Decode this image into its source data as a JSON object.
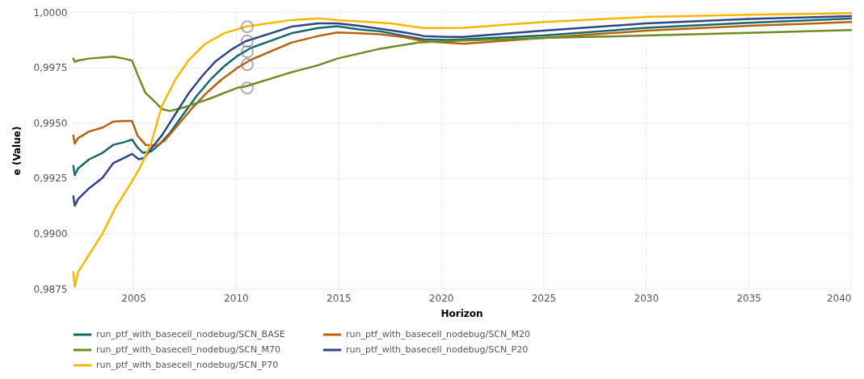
{
  "chart_data": {
    "type": "line",
    "xlabel": "Horizon",
    "ylabel": "e (Value)",
    "xlim": [
      2002,
      2040
    ],
    "xticks": [
      2005,
      2010,
      2015,
      2020,
      2025,
      2030,
      2035,
      2040
    ],
    "ylim": [
      0.9875,
      1
    ],
    "yticks": [
      {
        "value": 0.9875,
        "label": "0,9875"
      },
      {
        "value": 0.99,
        "label": "0,9900"
      },
      {
        "value": 0.9925,
        "label": "0,9925"
      },
      {
        "value": 0.995,
        "label": "0,9950"
      },
      {
        "value": 0.9975,
        "label": "0,9975"
      },
      {
        "value": 1,
        "label": "1,0000"
      }
    ],
    "grid": true,
    "legend": "bottom",
    "series": [
      {
        "name": "run_ptf_with_basecell_nodebug/SCN_BASE",
        "color": "#17696b",
        "x": [
          2002.07,
          2002.14,
          2002.3,
          2002.83,
          2003.49,
          2004.01,
          2004.54,
          2004.93,
          2005.2,
          2005.46,
          2005.86,
          2006.25,
          2006.78,
          2007.43,
          2008.09,
          2008.75,
          2009.41,
          2010.07,
          2010.72,
          2012.7,
          2014.01,
          2014.94,
          2015.99,
          2017.05,
          2018.23,
          2019.16,
          2020.2,
          2021.1,
          2025,
          2030,
          2035,
          2040
        ],
        "values": [
          0.99305,
          0.99263,
          0.99293,
          0.99334,
          0.99364,
          0.994,
          0.99412,
          0.99424,
          0.99388,
          0.99364,
          0.9937,
          0.994,
          0.99454,
          0.99538,
          0.99622,
          0.99694,
          0.99754,
          0.99802,
          0.99838,
          0.99904,
          0.99928,
          0.99936,
          0.99922,
          0.99913,
          0.99892,
          0.99877,
          0.99874,
          0.99877,
          0.99894,
          0.99929,
          0.99952,
          0.99971
        ]
      },
      {
        "name": "run_ptf_with_basecell_nodebug/SCN_M20",
        "color": "#b8620f",
        "x": [
          2002.07,
          2002.14,
          2002.3,
          2002.83,
          2003.49,
          2004.01,
          2004.54,
          2004.93,
          2005.2,
          2005.59,
          2006.12,
          2006.51,
          2007.17,
          2007.83,
          2008.49,
          2009.28,
          2010.07,
          2010.72,
          2012.7,
          2014.01,
          2014.94,
          2015.99,
          2017.05,
          2018.23,
          2019.16,
          2020.2,
          2021.1,
          2025,
          2030,
          2035,
          2040
        ],
        "values": [
          0.99442,
          0.99406,
          0.9943,
          0.9946,
          0.99478,
          0.99505,
          0.99508,
          0.99508,
          0.99442,
          0.994,
          0.99397,
          0.99418,
          0.9949,
          0.99562,
          0.99628,
          0.99694,
          0.99748,
          0.99784,
          0.99862,
          0.99892,
          0.99908,
          0.99904,
          0.999,
          0.99886,
          0.99868,
          0.99862,
          0.99857,
          0.99883,
          0.99916,
          0.99938,
          0.99955
        ]
      },
      {
        "name": "run_ptf_with_basecell_nodebug/SCN_M70",
        "color": "#6b8e23",
        "x": [
          2002.07,
          2002.14,
          2002.3,
          2002.83,
          2004.01,
          2004.54,
          2004.93,
          2005.2,
          2005.59,
          2005.99,
          2006.38,
          2006.78,
          2007.43,
          2008.75,
          2010.07,
          2010.46,
          2012.7,
          2014.01,
          2014.94,
          2016.91,
          2018.88,
          2020,
          2025,
          2030,
          2035,
          2040
        ],
        "values": [
          0.9979,
          0.99776,
          0.99781,
          0.9979,
          0.99799,
          0.9979,
          0.99781,
          0.99718,
          0.99634,
          0.996,
          0.99562,
          0.99553,
          0.99568,
          0.9961,
          0.99658,
          0.99664,
          0.99728,
          0.9976,
          0.9979,
          0.99832,
          0.99862,
          0.99868,
          0.99883,
          0.99894,
          0.99906,
          0.99919
        ]
      },
      {
        "name": "run_ptf_with_basecell_nodebug/SCN_P20",
        "color": "#2f4585",
        "x": [
          2002.07,
          2002.14,
          2002.3,
          2002.83,
          2003.49,
          2004.01,
          2004.54,
          2004.93,
          2005.26,
          2005.53,
          2005.86,
          2006.38,
          2007.04,
          2007.7,
          2008.36,
          2009.01,
          2009.8,
          2010.46,
          2012.7,
          2014.01,
          2014.94,
          2015.99,
          2017.05,
          2018.23,
          2019.16,
          2020.2,
          2021.1,
          2025,
          2030,
          2035,
          2040
        ],
        "values": [
          0.99167,
          0.99125,
          0.99155,
          0.99203,
          0.99251,
          0.99317,
          0.99341,
          0.99359,
          0.99335,
          0.99341,
          0.99382,
          0.99442,
          0.99538,
          0.99634,
          0.99712,
          0.99778,
          0.99832,
          0.99868,
          0.99934,
          0.99949,
          0.99949,
          0.99938,
          0.99924,
          0.99908,
          0.99892,
          0.99888,
          0.99888,
          0.99916,
          0.99949,
          0.99969,
          0.99982
        ]
      },
      {
        "name": "run_ptf_with_basecell_nodebug/SCN_P70",
        "color": "#f5b800",
        "x": [
          2002.07,
          2002.14,
          2002.3,
          2002.83,
          2003.49,
          2004.14,
          2004.8,
          2005.33,
          2005.86,
          2006.38,
          2007.04,
          2007.7,
          2008.49,
          2009.41,
          2010.46,
          2012.7,
          2014.01,
          2014.94,
          2015.99,
          2017.57,
          2019.16,
          2020.2,
          2021.1,
          2025,
          2030,
          2035,
          2040
        ],
        "values": [
          0.98825,
          0.98759,
          0.98825,
          0.98903,
          0.98999,
          0.99119,
          0.99215,
          0.99299,
          0.99406,
          0.99574,
          0.99694,
          0.99784,
          0.99856,
          0.99904,
          0.99934,
          0.99964,
          0.99972,
          0.99964,
          0.99958,
          0.99949,
          0.99928,
          0.99928,
          0.99929,
          0.99955,
          0.99978,
          0.99988,
          0.99995
        ]
      },
      {
        "type": "scatter",
        "marker": "circle",
        "color": "#808080",
        "x": [
          2010.55,
          2010.55,
          2010.55,
          2010.55,
          2010.55
        ],
        "values": [
          0.99934,
          0.99869,
          0.99821,
          0.99763,
          0.99657
        ]
      }
    ]
  }
}
